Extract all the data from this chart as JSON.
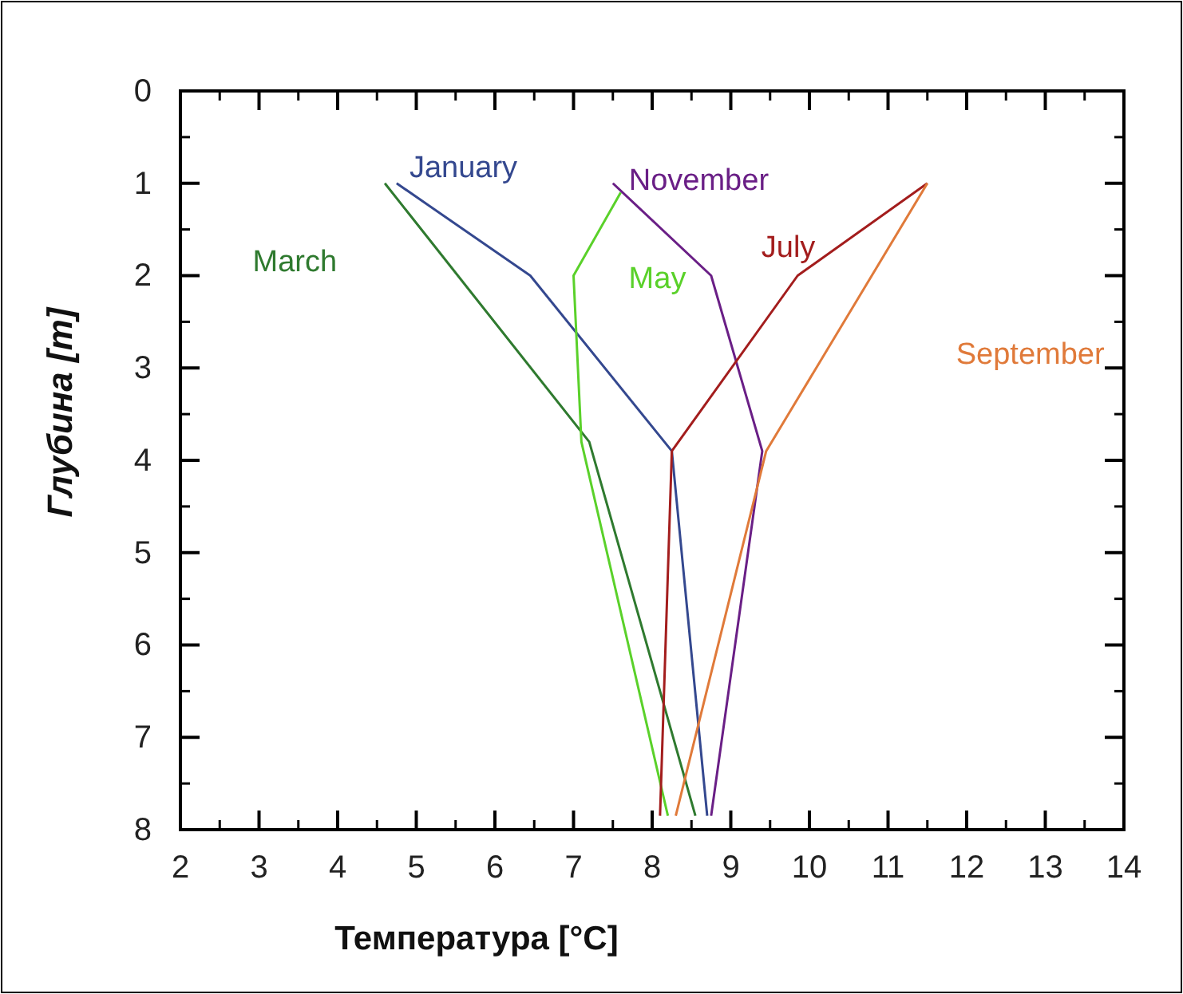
{
  "chart_data": {
    "type": "line",
    "xlabel": "Температура [°C]",
    "ylabel": "Глубина [m]",
    "xlim": [
      2,
      14
    ],
    "xticks": [
      2,
      3,
      4,
      5,
      6,
      7,
      8,
      9,
      10,
      11,
      12,
      13,
      14
    ],
    "ylim": [
      8,
      0
    ],
    "yticks": [
      0,
      1,
      2,
      3,
      4,
      5,
      6,
      7,
      8
    ],
    "grid": false,
    "legend": false,
    "marker": "none",
    "line_style": "solid",
    "series": [
      {
        "name": "January",
        "color": "#34488f",
        "x": [
          4.75,
          6.45,
          8.25,
          8.7
        ],
        "values": [
          1.0,
          2.0,
          3.9,
          7.85
        ]
      },
      {
        "name": "March",
        "color": "#2f7a2f",
        "x": [
          4.6,
          7.2,
          8.55
        ],
        "values": [
          1.0,
          3.8,
          7.85
        ]
      },
      {
        "name": "May",
        "color": "#5ad12a",
        "x": [
          7.6,
          7.0,
          7.1,
          8.2
        ],
        "values": [
          1.1,
          2.0,
          3.8,
          7.85
        ]
      },
      {
        "name": "November",
        "color": "#6a1f86",
        "x": [
          7.5,
          8.75,
          9.4,
          8.75
        ],
        "values": [
          1.0,
          2.0,
          3.9,
          7.85
        ]
      },
      {
        "name": "July",
        "color": "#a31d1d",
        "x": [
          11.5,
          9.85,
          8.25,
          8.1
        ],
        "values": [
          1.0,
          2.0,
          3.9,
          7.85
        ]
      },
      {
        "name": "September",
        "color": "#e07a3a",
        "x": [
          11.5,
          9.45,
          8.3
        ],
        "values": [
          1.0,
          3.9,
          7.85
        ]
      }
    ]
  }
}
